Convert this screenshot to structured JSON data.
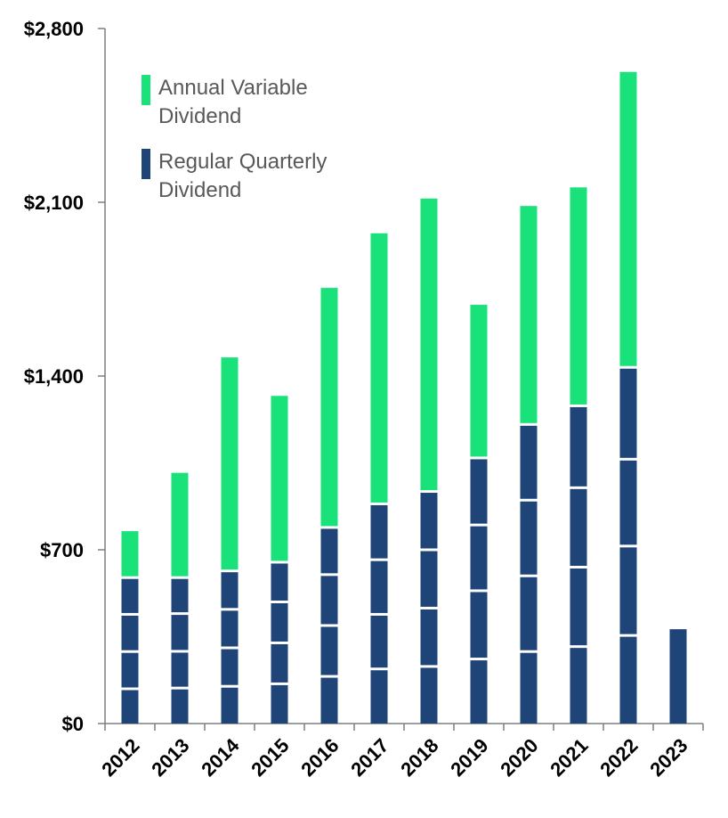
{
  "chart_data": {
    "type": "bar",
    "stacked": true,
    "categories": [
      "2012",
      "2013",
      "2014",
      "2015",
      "2016",
      "2017",
      "2018",
      "2019",
      "2020",
      "2021",
      "2022",
      "2023"
    ],
    "ylim": [
      0,
      2800
    ],
    "yticks": [
      0,
      700,
      1400,
      2100,
      2800
    ],
    "ytick_labels": [
      "$0",
      "$700",
      "$1,400",
      "$2,100",
      "$2,800"
    ],
    "grid": false,
    "legend_position": "top-left",
    "colors": {
      "regular": "#1f4478",
      "variable": "#19e27a",
      "separator": "#ffffff"
    },
    "series": [
      {
        "name": "Regular Quarterly Dividend",
        "quarters": [
          [
            140,
            150,
            150,
            148
          ],
          [
            143,
            148,
            152,
            145
          ],
          [
            150,
            155,
            155,
            155
          ],
          [
            160,
            165,
            165,
            160
          ],
          [
            190,
            205,
            205,
            190
          ],
          [
            220,
            220,
            220,
            225
          ],
          [
            230,
            235,
            235,
            235
          ],
          [
            260,
            275,
            265,
            270
          ],
          [
            290,
            305,
            305,
            305
          ],
          [
            310,
            320,
            320,
            330
          ],
          [
            355,
            360,
            350,
            370
          ],
          [
            380
          ]
        ],
        "values": [
          588,
          588,
          615,
          650,
          790,
          885,
          935,
          1070,
          1205,
          1280,
          1435,
          380
        ]
      },
      {
        "name": "Annual Variable Dividend",
        "values": [
          187,
          422,
          860,
          670,
          965,
          1090,
          1180,
          617,
          880,
          880,
          1190,
          0
        ]
      }
    ],
    "legend": [
      "Annual Variable\nDividend",
      "Regular Quarterly\nDividend"
    ]
  }
}
